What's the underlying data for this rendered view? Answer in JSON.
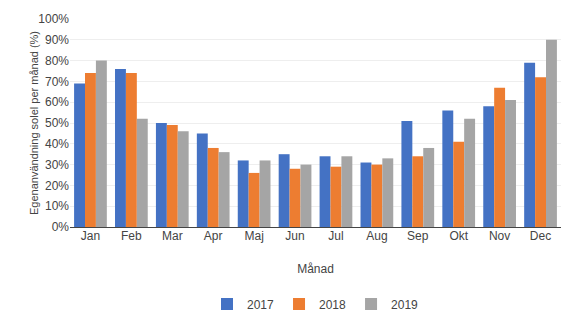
{
  "chart_data": {
    "type": "bar",
    "categories": [
      "Jan",
      "Feb",
      "Mar",
      "Apr",
      "Maj",
      "Jun",
      "Jul",
      "Aug",
      "Sep",
      "Okt",
      "Nov",
      "Dec"
    ],
    "series": [
      {
        "name": "2017",
        "color": "#4472C4",
        "values": [
          69,
          76,
          50,
          45,
          32,
          35,
          34,
          31,
          51,
          56,
          58,
          79
        ]
      },
      {
        "name": "2018",
        "color": "#ED7D31",
        "values": [
          74,
          74,
          49,
          38,
          26,
          28,
          29,
          30,
          34,
          41,
          67,
          72
        ]
      },
      {
        "name": "2019",
        "color": "#A5A5A5",
        "values": [
          80,
          52,
          46,
          36,
          32,
          30,
          34,
          33,
          38,
          52,
          61,
          90
        ]
      }
    ],
    "xlabel": "Månad",
    "ylabel": "Egenanvändning solel per månad (%)",
    "ylim": [
      0,
      100
    ],
    "yticks": [
      {
        "value": 0,
        "label": "0%"
      },
      {
        "value": 10,
        "label": "10%"
      },
      {
        "value": 20,
        "label": "20%"
      },
      {
        "value": 30,
        "label": "30%"
      },
      {
        "value": 40,
        "label": "40%"
      },
      {
        "value": 50,
        "label": "50%"
      },
      {
        "value": 60,
        "label": "60%"
      },
      {
        "value": 70,
        "label": "70%"
      },
      {
        "value": 80,
        "label": "80%"
      },
      {
        "value": 90,
        "label": "90%"
      },
      {
        "value": 100,
        "label": "100%"
      }
    ],
    "grid": true,
    "legend": "bottom"
  }
}
